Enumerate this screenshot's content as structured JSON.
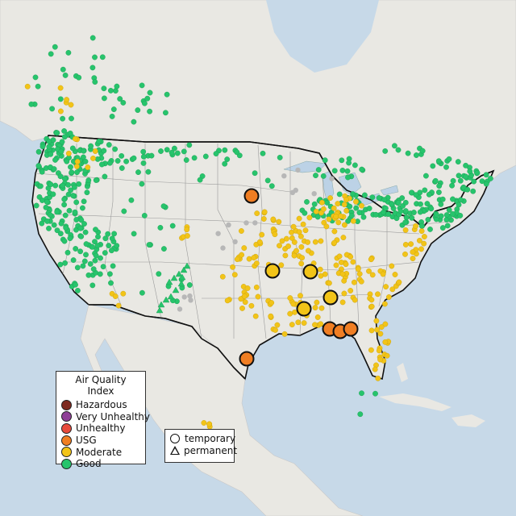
{
  "legend_aqi": {
    "title": "Air Quality Index",
    "items": [
      {
        "label": "Hazardous",
        "color": "#7e2a20"
      },
      {
        "label": "Very Unhealthy",
        "color": "#8f3f97"
      },
      {
        "label": "Unhealthy",
        "color": "#e84b3c"
      },
      {
        "label": "USG",
        "color": "#f07e23"
      },
      {
        "label": "Moderate",
        "color": "#f2c418"
      },
      {
        "label": "Good",
        "color": "#27c46c"
      }
    ]
  },
  "legend_monitor": {
    "items": [
      {
        "label": "temporary",
        "shape": "circle"
      },
      {
        "label": "permanent",
        "shape": "triangle"
      }
    ]
  },
  "colors": {
    "ocean": "#c7d9e8",
    "land": "#e9e8e3",
    "lakes": "#bcd2e6",
    "border": "#111111",
    "state_lines": "#9a9a9a",
    "no_data": "#b7b7b7"
  }
}
